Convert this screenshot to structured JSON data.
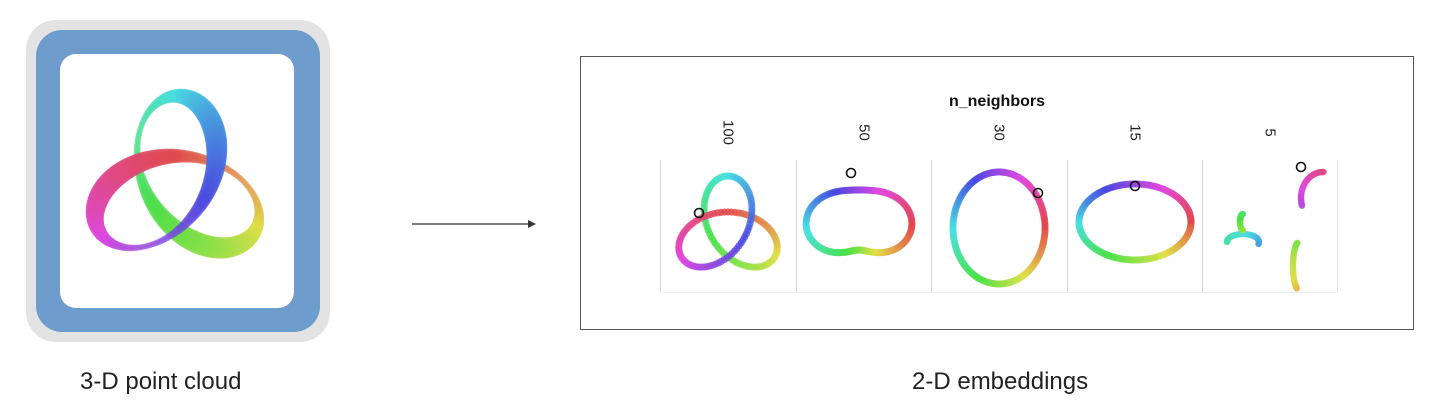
{
  "left_caption": "3-D point cloud",
  "right_caption": "2-D embeddings",
  "param_title": "n_neighbors",
  "panels": [
    {
      "label": "100"
    },
    {
      "label": "50"
    },
    {
      "label": "30"
    },
    {
      "label": "15"
    },
    {
      "label": "5"
    }
  ],
  "colors": {
    "frame_blue": "#6e9ccc",
    "frame_gray": "#e3e3e3",
    "hue_palette": [
      "#9b59d6",
      "#6d6fd8",
      "#4aa3d8",
      "#3ec9b0",
      "#5ed25e",
      "#a9d44a",
      "#d8b84a",
      "#e0705a",
      "#d64a8a"
    ]
  }
}
